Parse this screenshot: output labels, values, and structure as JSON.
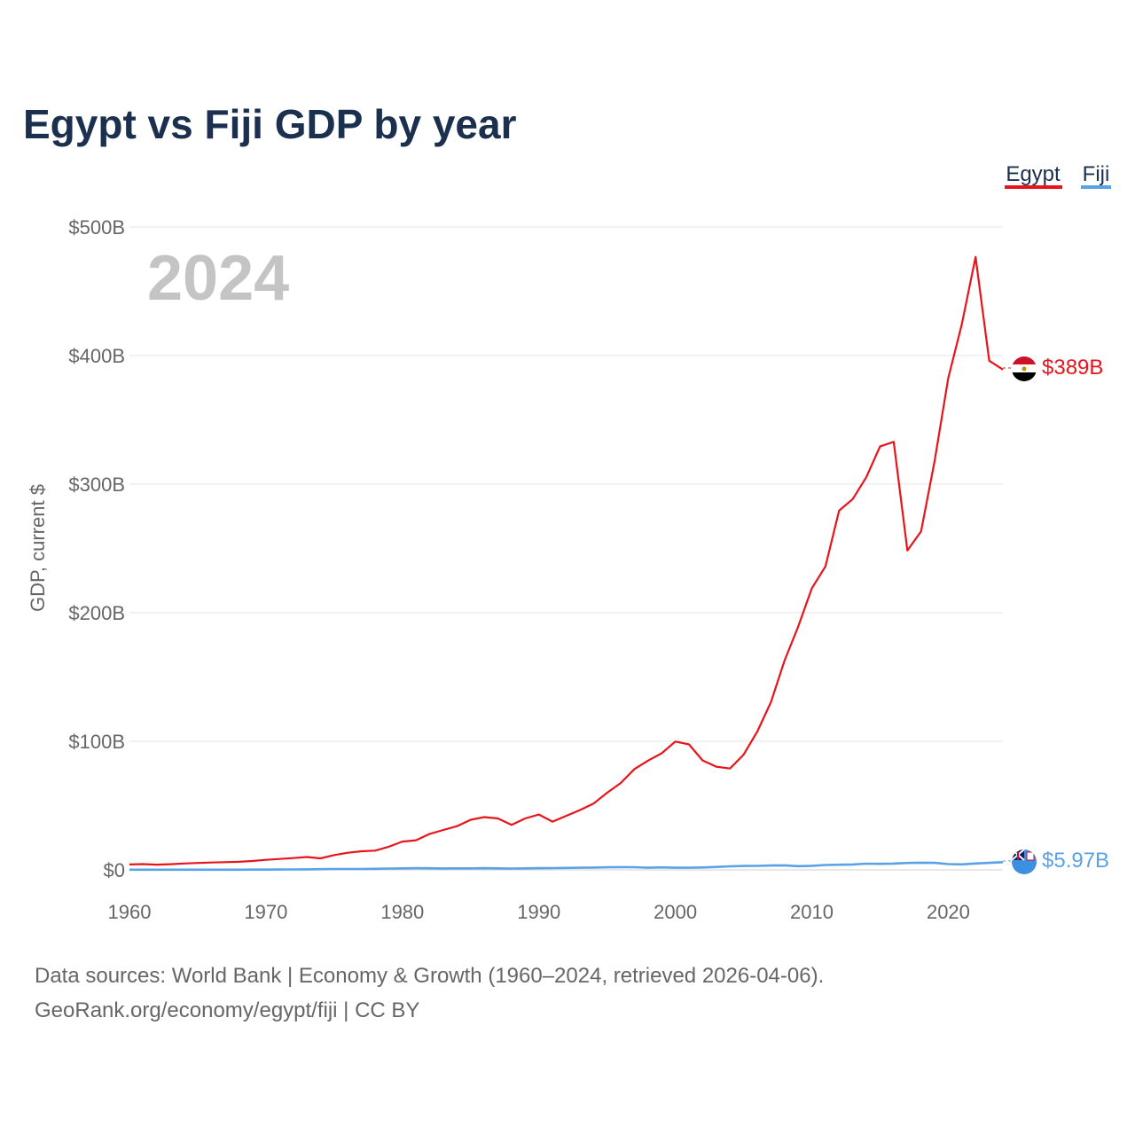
{
  "chart_data": {
    "type": "line",
    "title": "Egypt vs Fiji GDP by year",
    "ylabel": "GDP, current $",
    "xlabel": "",
    "current_year": "2024",
    "xlim": [
      1960,
      2024
    ],
    "ylim": [
      0,
      500
    ],
    "y_unit": "billion USD",
    "grid": true,
    "legend_position": "top-right",
    "x_ticks": [
      {
        "value": 1960,
        "label": "1960"
      },
      {
        "value": 1970,
        "label": "1970"
      },
      {
        "value": 1980,
        "label": "1980"
      },
      {
        "value": 1990,
        "label": "1990"
      },
      {
        "value": 2000,
        "label": "2000"
      },
      {
        "value": 2010,
        "label": "2010"
      },
      {
        "value": 2020,
        "label": "2020"
      }
    ],
    "y_ticks": [
      {
        "value": 0,
        "label": "$0"
      },
      {
        "value": 100,
        "label": "$100B"
      },
      {
        "value": 200,
        "label": "$200B"
      },
      {
        "value": 300,
        "label": "$300B"
      },
      {
        "value": 400,
        "label": "$400B"
      },
      {
        "value": 500,
        "label": "$500B"
      }
    ],
    "series": [
      {
        "name": "Egypt",
        "key": "egypt",
        "color": "#e8141b",
        "end_label": "$389B",
        "x": [
          1960,
          1961,
          1962,
          1963,
          1964,
          1965,
          1966,
          1967,
          1968,
          1969,
          1970,
          1971,
          1972,
          1973,
          1974,
          1975,
          1976,
          1977,
          1978,
          1979,
          1980,
          1981,
          1982,
          1983,
          1984,
          1985,
          1986,
          1987,
          1988,
          1989,
          1990,
          1991,
          1992,
          1993,
          1994,
          1995,
          1996,
          1997,
          1998,
          1999,
          2000,
          2001,
          2002,
          2003,
          2004,
          2005,
          2006,
          2007,
          2008,
          2009,
          2010,
          2011,
          2012,
          2013,
          2014,
          2015,
          2016,
          2017,
          2018,
          2019,
          2020,
          2021,
          2022,
          2023,
          2024
        ],
        "values": [
          4.2,
          4.5,
          4.1,
          4.4,
          5.0,
          5.4,
          5.7,
          6.0,
          6.3,
          6.9,
          7.8,
          8.5,
          9.2,
          10.0,
          9.0,
          11.5,
          13.3,
          14.5,
          15.0,
          18.0,
          22.0,
          23.0,
          28.0,
          31.0,
          34.0,
          39.0,
          41.0,
          40.0,
          35.0,
          40.0,
          43.0,
          37.5,
          42.0,
          46.5,
          51.5,
          60.0,
          67.6,
          78.4,
          85.0,
          90.7,
          99.8,
          97.6,
          85.1,
          80.3,
          78.8,
          89.6,
          107.5,
          130.4,
          162.8,
          189.1,
          218.9,
          236.0,
          279.4,
          288.4,
          305.6,
          329.4,
          332.9,
          248.4,
          263.2,
          317.9,
          382.5,
          424.7,
          476.7,
          396.0,
          389.1
        ]
      },
      {
        "name": "Fiji",
        "key": "fiji",
        "color": "#5aa2e6",
        "end_label": "$5.97B",
        "x": [
          1960,
          1961,
          1962,
          1963,
          1964,
          1965,
          1966,
          1967,
          1968,
          1969,
          1970,
          1971,
          1972,
          1973,
          1974,
          1975,
          1976,
          1977,
          1978,
          1979,
          1980,
          1981,
          1982,
          1983,
          1984,
          1985,
          1986,
          1987,
          1988,
          1989,
          1990,
          1991,
          1992,
          1993,
          1994,
          1995,
          1996,
          1997,
          1998,
          1999,
          2000,
          2001,
          2002,
          2003,
          2004,
          2005,
          2006,
          2007,
          2008,
          2009,
          2010,
          2011,
          2012,
          2013,
          2014,
          2015,
          2016,
          2017,
          2018,
          2019,
          2020,
          2021,
          2022,
          2023,
          2024
        ],
        "values": [
          0.11,
          0.12,
          0.12,
          0.13,
          0.14,
          0.15,
          0.15,
          0.16,
          0.17,
          0.19,
          0.22,
          0.26,
          0.33,
          0.44,
          0.56,
          0.68,
          0.69,
          0.72,
          0.83,
          1.0,
          1.2,
          1.28,
          1.22,
          1.12,
          1.17,
          1.14,
          1.32,
          1.14,
          1.04,
          1.19,
          1.34,
          1.38,
          1.54,
          1.63,
          1.82,
          1.99,
          2.13,
          2.09,
          1.66,
          1.95,
          1.68,
          1.66,
          1.84,
          2.31,
          2.73,
          3.01,
          3.09,
          3.4,
          3.52,
          2.87,
          3.14,
          3.77,
          3.97,
          4.19,
          4.86,
          4.68,
          4.93,
          5.35,
          5.58,
          5.45,
          4.48,
          4.3,
          4.98,
          5.44,
          5.97
        ]
      }
    ],
    "source_line_1": "Data sources: World Bank | Economy & Growth (1960–2024, retrieved 2026-04-06).",
    "source_line_2": "GeoRank.org/economy/egypt/fiji | CC BY"
  }
}
